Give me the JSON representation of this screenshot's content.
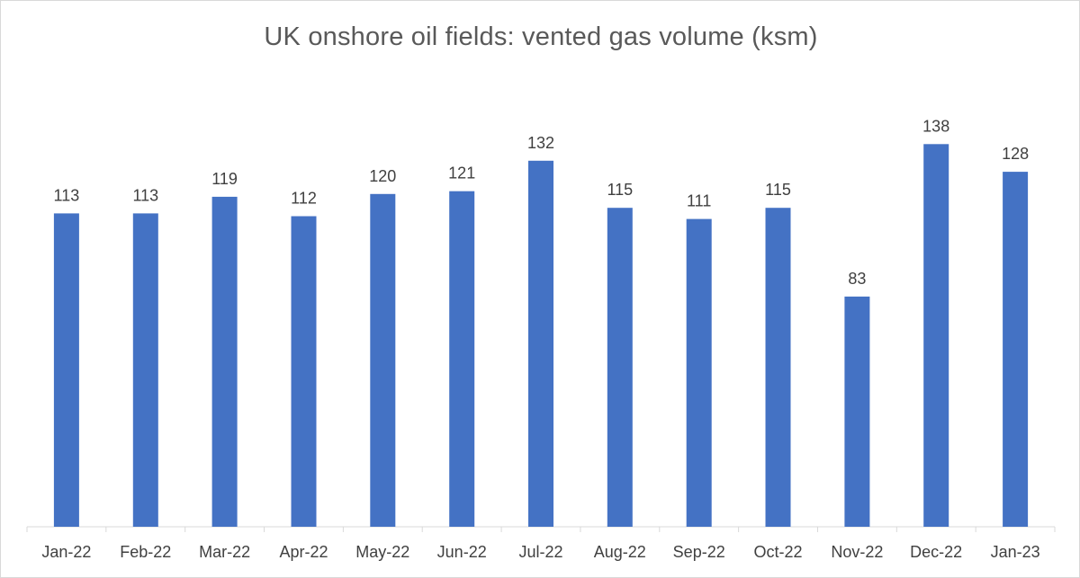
{
  "chart_data": {
    "type": "bar",
    "title": "UK onshore oil fields: vented gas volume  (ksm)",
    "xlabel": "",
    "ylabel": "",
    "categories": [
      "Jan-22",
      "Feb-22",
      "Mar-22",
      "Apr-22",
      "May-22",
      "Jun-22",
      "Jul-22",
      "Aug-22",
      "Sep-22",
      "Oct-22",
      "Nov-22",
      "Dec-22",
      "Jan-23"
    ],
    "values": [
      113,
      113,
      119,
      112,
      120,
      121,
      132,
      115,
      111,
      115,
      83,
      138,
      128
    ],
    "ylim": [
      0,
      140
    ],
    "grid": false,
    "legend": "none",
    "data_labels": true,
    "colors": {
      "bar": "#4472c4",
      "text": "#404040",
      "title": "#595959",
      "axis": "#d9d9d9"
    }
  }
}
